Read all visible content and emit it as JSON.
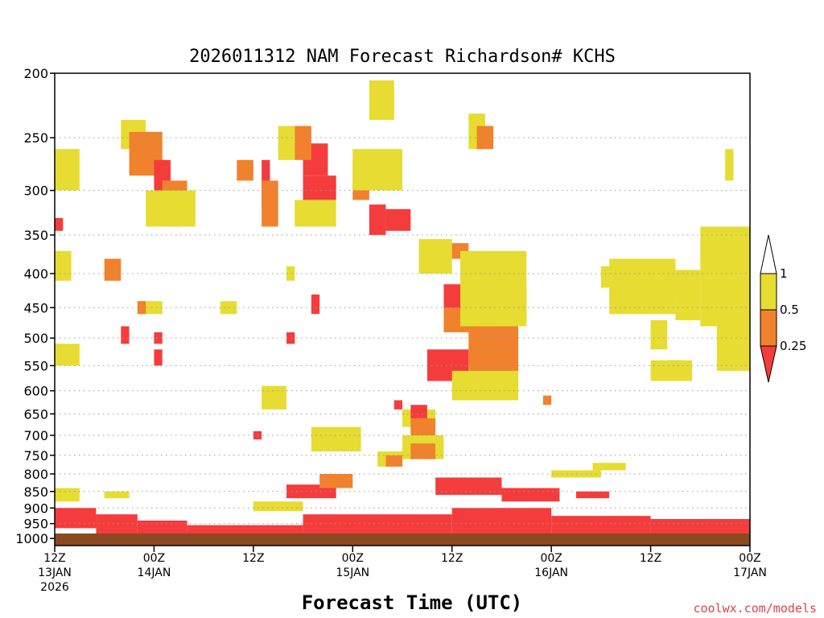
{
  "chart_data": {
    "type": "heatmap",
    "title": "2026011312 NAM Forecast Richardson# KCHS",
    "xlabel": "Forecast Time (UTC)",
    "ylabel": "",
    "y_axis": {
      "scale": "log-pressure",
      "range": [
        200,
        1025
      ],
      "ticks": [
        200,
        250,
        300,
        350,
        400,
        450,
        500,
        550,
        600,
        650,
        700,
        750,
        800,
        850,
        900,
        950,
        1000
      ]
    },
    "x_axis": {
      "range_hours": [
        0,
        84
      ],
      "ticks": [
        {
          "h": 0,
          "line1": "12Z",
          "line2": "13JAN",
          "line3": "2026"
        },
        {
          "h": 12,
          "line1": "00Z",
          "line2": "14JAN",
          "line3": ""
        },
        {
          "h": 24,
          "line1": "12Z",
          "line2": "",
          "line3": ""
        },
        {
          "h": 36,
          "line1": "00Z",
          "line2": "15JAN",
          "line3": ""
        },
        {
          "h": 48,
          "line1": "12Z",
          "line2": "",
          "line3": ""
        },
        {
          "h": 60,
          "line1": "00Z",
          "line2": "16JAN",
          "line3": ""
        },
        {
          "h": 72,
          "line1": "12Z",
          "line2": "",
          "line3": ""
        },
        {
          "h": 84,
          "line1": "00Z",
          "line2": "17JAN",
          "line3": ""
        }
      ]
    },
    "legend": {
      "placement": "right",
      "entries": [
        {
          "label": "1",
          "range": "0.5-1",
          "color": "#e6dc32"
        },
        {
          "label": "0.5",
          "range": "0.25-0.5",
          "color": "#f0822d"
        },
        {
          "label": "0.25",
          "range": "<0.25",
          "color": "#f53c3c"
        }
      ]
    },
    "colors": {
      "low": "#f53c3c",
      "mid": "#f0822d",
      "high": "#e6dc32",
      "ground": "#8b4a22"
    },
    "hour_step": 1.5,
    "level_step_hpa": 25,
    "cells": [
      {
        "class": "low",
        "t0": 0,
        "t1": 5,
        "p0": 900,
        "p1": 965
      },
      {
        "class": "low",
        "t0": 5,
        "t1": 10,
        "p0": 920,
        "p1": 985
      },
      {
        "class": "low",
        "t0": 10,
        "t1": 16,
        "p0": 940,
        "p1": 1000
      },
      {
        "class": "low",
        "t0": 16,
        "t1": 30,
        "p0": 955,
        "p1": 1008
      },
      {
        "class": "low",
        "t0": 30,
        "t1": 48,
        "p0": 920,
        "p1": 1008
      },
      {
        "class": "low",
        "t0": 48,
        "t1": 60,
        "p0": 900,
        "p1": 1005
      },
      {
        "class": "low",
        "t0": 60,
        "t1": 72,
        "p0": 925,
        "p1": 1005
      },
      {
        "class": "low",
        "t0": 72,
        "t1": 84,
        "p0": 935,
        "p1": 1005
      },
      {
        "class": "high",
        "t0": 0,
        "t1": 3,
        "p0": 840,
        "p1": 880
      },
      {
        "class": "high",
        "t0": 6,
        "t1": 9,
        "p0": 850,
        "p1": 870
      },
      {
        "class": "high",
        "t0": 24,
        "t1": 30,
        "p0": 880,
        "p1": 910
      },
      {
        "class": "low",
        "t0": 28,
        "t1": 34,
        "p0": 830,
        "p1": 870
      },
      {
        "class": "mid",
        "t0": 32,
        "t1": 36,
        "p0": 800,
        "p1": 840
      },
      {
        "class": "low",
        "t0": 46,
        "t1": 54,
        "p0": 810,
        "p1": 860
      },
      {
        "class": "low",
        "t0": 54,
        "t1": 61,
        "p0": 840,
        "p1": 880
      },
      {
        "class": "high",
        "t0": 60,
        "t1": 66,
        "p0": 790,
        "p1": 810
      },
      {
        "class": "low",
        "t0": 63,
        "t1": 67,
        "p0": 850,
        "p1": 870
      },
      {
        "class": "high",
        "t0": 8,
        "t1": 11,
        "p0": 235,
        "p1": 260
      },
      {
        "class": "mid",
        "t0": 9,
        "t1": 13,
        "p0": 245,
        "p1": 285
      },
      {
        "class": "low",
        "t0": 12,
        "t1": 14,
        "p0": 270,
        "p1": 300
      },
      {
        "class": "mid",
        "t0": 13,
        "t1": 16,
        "p0": 290,
        "p1": 330
      },
      {
        "class": "low",
        "t0": 14,
        "t1": 15,
        "p0": 315,
        "p1": 340
      },
      {
        "class": "high",
        "t0": 11,
        "t1": 17,
        "p0": 300,
        "p1": 340
      },
      {
        "class": "mid",
        "t0": 22,
        "t1": 24,
        "p0": 270,
        "p1": 290
      },
      {
        "class": "low",
        "t0": 25,
        "t1": 26,
        "p0": 270,
        "p1": 320
      },
      {
        "class": "mid",
        "t0": 25,
        "t1": 27,
        "p0": 290,
        "p1": 340
      },
      {
        "class": "high",
        "t0": 27,
        "t1": 29,
        "p0": 240,
        "p1": 270
      },
      {
        "class": "low",
        "t0": 30,
        "t1": 33,
        "p0": 255,
        "p1": 285
      },
      {
        "class": "mid",
        "t0": 29,
        "t1": 31,
        "p0": 240,
        "p1": 270
      },
      {
        "class": "low",
        "t0": 30,
        "t1": 34,
        "p0": 285,
        "p1": 310
      },
      {
        "class": "high",
        "t0": 29,
        "t1": 34,
        "p0": 310,
        "p1": 340
      },
      {
        "class": "low",
        "t0": 38,
        "t1": 40,
        "p0": 315,
        "p1": 350
      },
      {
        "class": "mid",
        "t0": 36,
        "t1": 38,
        "p0": 270,
        "p1": 310
      },
      {
        "class": "high",
        "t0": 36,
        "t1": 42,
        "p0": 260,
        "p1": 300
      },
      {
        "class": "low",
        "t0": 40,
        "t1": 43,
        "p0": 320,
        "p1": 345
      },
      {
        "class": "mid",
        "t0": 39,
        "t1": 41,
        "p0": 210,
        "p1": 230
      },
      {
        "class": "high",
        "t0": 38,
        "t1": 41,
        "p0": 205,
        "p1": 235
      },
      {
        "class": "high",
        "t0": 44,
        "t1": 48,
        "p0": 355,
        "p1": 400
      },
      {
        "class": "mid",
        "t0": 48,
        "t1": 50,
        "p0": 360,
        "p1": 380
      },
      {
        "class": "low",
        "t0": 47,
        "t1": 51,
        "p0": 415,
        "p1": 460
      },
      {
        "class": "mid",
        "t0": 47,
        "t1": 52,
        "p0": 450,
        "p1": 490
      },
      {
        "class": "low",
        "t0": 45,
        "t1": 50,
        "p0": 520,
        "p1": 580
      },
      {
        "class": "mid",
        "t0": 50,
        "t1": 56,
        "p0": 520,
        "p1": 580
      },
      {
        "class": "low",
        "t0": 51,
        "t1": 56,
        "p0": 380,
        "p1": 430
      },
      {
        "class": "mid",
        "t0": 52,
        "t1": 57,
        "p0": 420,
        "p1": 470
      },
      {
        "class": "high",
        "t0": 49,
        "t1": 57,
        "p0": 370,
        "p1": 480
      },
      {
        "class": "low",
        "t0": 53,
        "t1": 56,
        "p0": 480,
        "p1": 520
      },
      {
        "class": "mid",
        "t0": 50,
        "t1": 56,
        "p0": 480,
        "p1": 560
      },
      {
        "class": "high",
        "t0": 48,
        "t1": 56,
        "p0": 560,
        "p1": 620
      },
      {
        "class": "high",
        "t0": 50,
        "t1": 52,
        "p0": 230,
        "p1": 260
      },
      {
        "class": "mid",
        "t0": 51,
        "t1": 53,
        "p0": 240,
        "p1": 260
      },
      {
        "class": "high",
        "t0": 42,
        "t1": 46,
        "p0": 640,
        "p1": 680
      },
      {
        "class": "low",
        "t0": 43,
        "t1": 45,
        "p0": 630,
        "p1": 660
      },
      {
        "class": "mid",
        "t0": 43,
        "t1": 46,
        "p0": 660,
        "p1": 700
      },
      {
        "class": "high",
        "t0": 42,
        "t1": 47,
        "p0": 700,
        "p1": 760
      },
      {
        "class": "mid",
        "t0": 43,
        "t1": 46,
        "p0": 720,
        "p1": 760
      },
      {
        "class": "low",
        "t0": 32,
        "t1": 35,
        "p0": 690,
        "p1": 710
      },
      {
        "class": "high",
        "t0": 31,
        "t1": 37,
        "p0": 680,
        "p1": 740
      },
      {
        "class": "high",
        "t0": 39,
        "t1": 42,
        "p0": 740,
        "p1": 780
      },
      {
        "class": "mid",
        "t0": 40,
        "t1": 42,
        "p0": 750,
        "p1": 780
      },
      {
        "class": "high",
        "t0": 65,
        "t1": 69,
        "p0": 770,
        "p1": 790
      },
      {
        "class": "high",
        "t0": 66,
        "t1": 70,
        "p0": 390,
        "p1": 420
      },
      {
        "class": "low",
        "t0": 68,
        "t1": 71,
        "p0": 395,
        "p1": 420
      },
      {
        "class": "mid",
        "t0": 70,
        "t1": 74,
        "p0": 410,
        "p1": 440
      },
      {
        "class": "high",
        "t0": 67,
        "t1": 75,
        "p0": 380,
        "p1": 460
      },
      {
        "class": "high",
        "t0": 72,
        "t1": 74,
        "p0": 470,
        "p1": 520
      },
      {
        "class": "mid",
        "t0": 75,
        "t1": 77,
        "p0": 395,
        "p1": 430
      },
      {
        "class": "high",
        "t0": 75,
        "t1": 78,
        "p0": 395,
        "p1": 470
      },
      {
        "class": "low",
        "t0": 79,
        "t1": 80,
        "p0": 420,
        "p1": 440
      },
      {
        "class": "mid",
        "t0": 80,
        "t1": 82,
        "p0": 430,
        "p1": 460
      },
      {
        "class": "high",
        "t0": 78,
        "t1": 84,
        "p0": 340,
        "p1": 480
      },
      {
        "class": "mid",
        "t0": 81,
        "t1": 83,
        "p0": 500,
        "p1": 540
      },
      {
        "class": "high",
        "t0": 80,
        "t1": 84,
        "p0": 480,
        "p1": 560
      },
      {
        "class": "low",
        "t0": 74,
        "t1": 76,
        "p0": 540,
        "p1": 550
      },
      {
        "class": "high",
        "t0": 72,
        "t1": 77,
        "p0": 540,
        "p1": 580
      },
      {
        "class": "high",
        "t0": 81,
        "t1": 82,
        "p0": 260,
        "p1": 290
      },
      {
        "class": "high",
        "t0": 0,
        "t1": 3,
        "p0": 260,
        "p1": 300
      },
      {
        "class": "low",
        "t0": 0,
        "t1": 1,
        "p0": 330,
        "p1": 345
      },
      {
        "class": "high",
        "t0": 0,
        "t1": 2,
        "p0": 370,
        "p1": 410
      },
      {
        "class": "mid",
        "t0": 6,
        "t1": 8,
        "p0": 380,
        "p1": 410
      },
      {
        "class": "high",
        "t0": 0,
        "t1": 3,
        "p0": 510,
        "p1": 550
      },
      {
        "class": "high",
        "t0": 10,
        "t1": 13,
        "p0": 440,
        "p1": 460
      },
      {
        "class": "mid",
        "t0": 10,
        "t1": 11,
        "p0": 440,
        "p1": 460
      },
      {
        "class": "low",
        "t0": 8,
        "t1": 9,
        "p0": 480,
        "p1": 510
      },
      {
        "class": "low",
        "t0": 12,
        "t1": 13,
        "p0": 490,
        "p1": 510
      },
      {
        "class": "low",
        "t0": 12,
        "t1": 13,
        "p0": 520,
        "p1": 550
      },
      {
        "class": "high",
        "t0": 25,
        "t1": 28,
        "p0": 590,
        "p1": 640
      },
      {
        "class": "low",
        "t0": 24,
        "t1": 25,
        "p0": 690,
        "p1": 710
      },
      {
        "class": "high",
        "t0": 20,
        "t1": 22,
        "p0": 440,
        "p1": 460
      },
      {
        "class": "low",
        "t0": 31,
        "t1": 32,
        "p0": 430,
        "p1": 460
      },
      {
        "class": "low",
        "t0": 28,
        "t1": 29,
        "p0": 490,
        "p1": 510
      },
      {
        "class": "high",
        "t0": 28,
        "t1": 29,
        "p0": 390,
        "p1": 410
      },
      {
        "class": "mid",
        "t0": 59,
        "t1": 60,
        "p0": 610,
        "p1": 630
      },
      {
        "class": "low",
        "t0": 41,
        "t1": 42,
        "p0": 620,
        "p1": 640
      }
    ]
  },
  "watermark": "coolwx.com/models"
}
